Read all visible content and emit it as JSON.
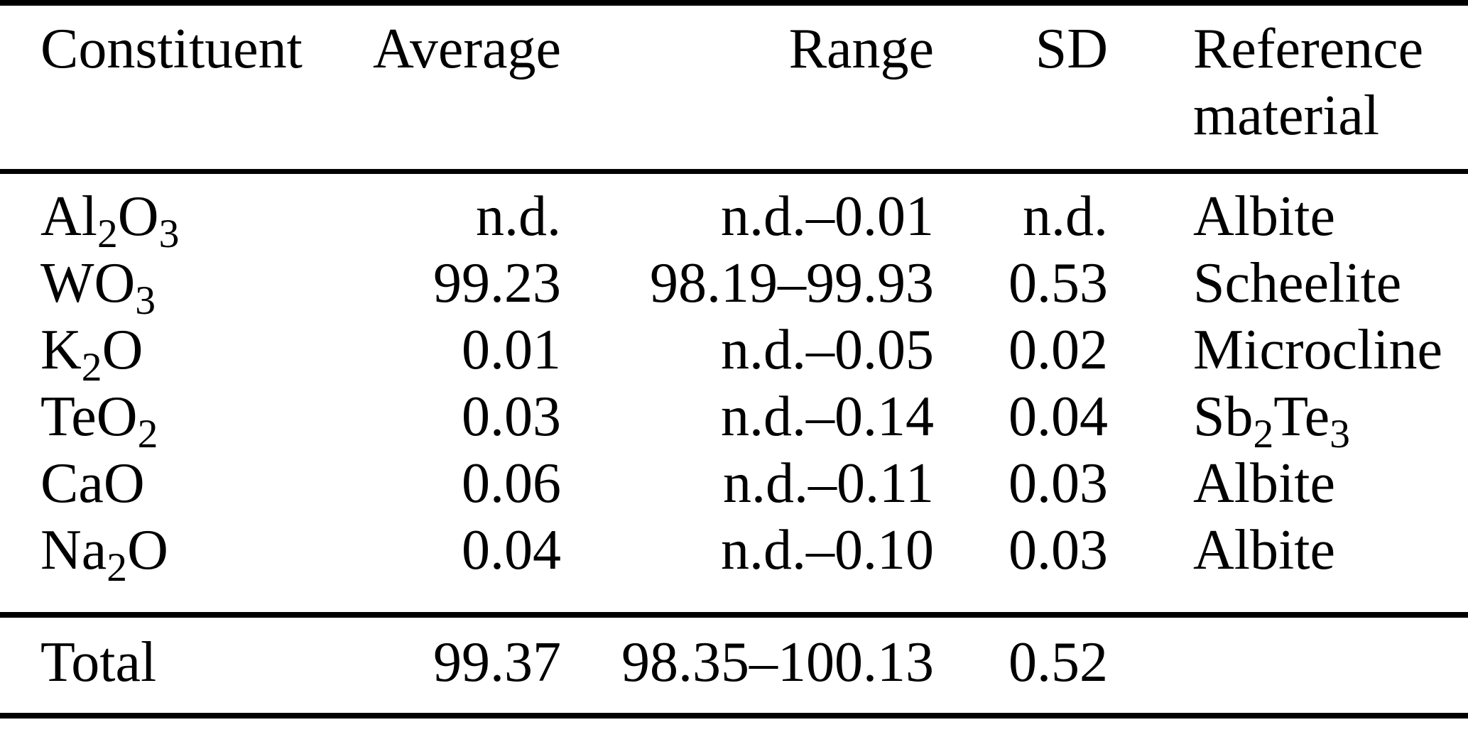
{
  "table": {
    "header": {
      "constituent": "Constituent",
      "average": "Average",
      "range": "Range",
      "sd": "SD",
      "reference_line1": "Reference",
      "reference_line2": "material"
    },
    "rows": [
      {
        "constituent": "Al2O3",
        "average": "n.d.",
        "range": "n.d.–0.01",
        "sd": "n.d.",
        "reference": "Albite"
      },
      {
        "constituent": "WO3",
        "average": "99.23",
        "range": "98.19–99.93",
        "sd": "0.53",
        "reference": "Scheelite"
      },
      {
        "constituent": "K2O",
        "average": "0.01",
        "range": "n.d.–0.05",
        "sd": "0.02",
        "reference": "Microcline"
      },
      {
        "constituent": "TeO2",
        "average": "0.03",
        "range": "n.d.–0.14",
        "sd": "0.04",
        "reference": "Sb2Te3"
      },
      {
        "constituent": "CaO",
        "average": "0.06",
        "range": "n.d.–0.11",
        "sd": "0.03",
        "reference": "Albite"
      },
      {
        "constituent": "Na2O",
        "average": "0.04",
        "range": "n.d.–0.10",
        "sd": "0.03",
        "reference": "Albite"
      }
    ],
    "total": {
      "label": "Total",
      "average": "99.37",
      "range": "98.35–100.13",
      "sd": "0.52",
      "reference": ""
    }
  },
  "colors": {
    "text": "#000000",
    "background": "#ffffff",
    "rule": "#000000"
  }
}
